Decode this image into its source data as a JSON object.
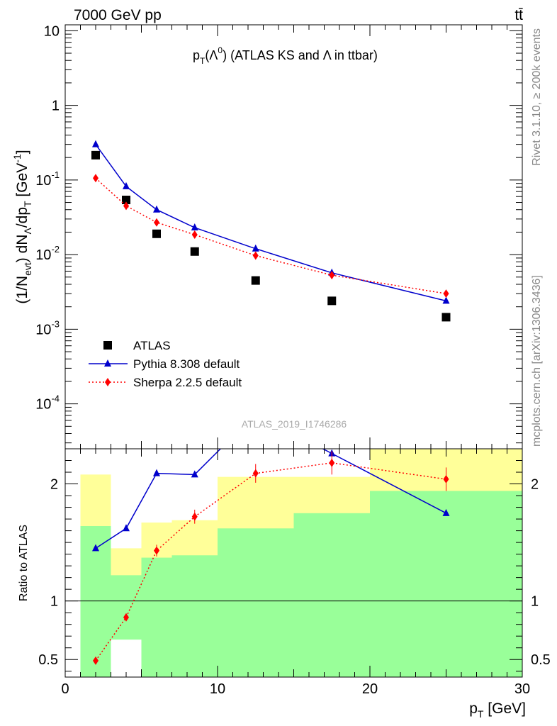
{
  "header": {
    "left": "7000 GeV pp",
    "right": "tt̄"
  },
  "side_labels": {
    "rivet": "Rivet 3.1.10, ≥ 200k events",
    "mcplots": "mcplots.cern.ch [arXiv:1306.3436]"
  },
  "chart_data": [
    {
      "type": "scatter",
      "title": "p_T(Λ^0) (ATLAS KS and Λ in ttbar)",
      "ylabel": "(1/N_evt) dN_Λ/dp_T [GeV^-1]",
      "xlabel": "p_T [GeV]",
      "yscale": "log",
      "xlim": [
        0,
        30
      ],
      "ylim": [
        2.5e-05,
        12
      ],
      "y_ticks": [
        "10^-4",
        "10^-3",
        "10^-2",
        "10^-1",
        "1",
        "10"
      ],
      "watermark": "ATLAS_2019_I1746286",
      "legend": {
        "position": "middle-left"
      },
      "series": [
        {
          "name": "ATLAS",
          "style": "markers",
          "marker": "square",
          "color": "#000000",
          "x": [
            2,
            4,
            6,
            8.5,
            12.5,
            17.5,
            25
          ],
          "y": [
            0.215,
            0.054,
            0.019,
            0.011,
            0.0045,
            0.0024,
            0.00145
          ]
        },
        {
          "name": "Pythia 8.308 default",
          "style": "solid",
          "marker": "triangle",
          "color": "#0000cc",
          "x": [
            2,
            4,
            6,
            8.5,
            12.5,
            17.5,
            25
          ],
          "y": [
            0.3,
            0.082,
            0.04,
            0.023,
            0.012,
            0.0057,
            0.0024
          ]
        },
        {
          "name": "Sherpa 2.2.5 default",
          "style": "dotted",
          "marker": "diamond",
          "color": "#ff0000",
          "x": [
            2,
            4,
            6,
            8.5,
            12.5,
            17.5,
            25
          ],
          "y": [
            0.106,
            0.045,
            0.027,
            0.0185,
            0.0097,
            0.0053,
            0.003
          ]
        }
      ]
    },
    {
      "type": "line",
      "ylabel": "Ratio to ATLAS",
      "xlabel": "p_T [GeV]",
      "xlim": [
        0,
        30
      ],
      "ylim": [
        0.35,
        2.3
      ],
      "x_ticks": [
        0,
        10,
        20,
        30
      ],
      "y_ticks": [
        0.5,
        1,
        2
      ],
      "reference_line": 1,
      "bins": [
        1,
        3,
        5,
        7,
        10,
        15,
        20,
        30
      ],
      "yellow_band": {
        "color": "#ffff99",
        "low": [
          0.41,
          0.62,
          0.75,
          0.74,
          0.44,
          0.3,
          0.3
        ],
        "high": [
          2.08,
          1.45,
          1.67,
          1.69,
          2.06,
          2.06,
          2.3
        ]
      },
      "green_band": {
        "color": "#99ff99",
        "low": [
          0.3,
          0.3,
          0.3,
          0.3,
          0.3,
          0.3,
          0.3
        ],
        "high": [
          1.64,
          1.22,
          1.37,
          1.39,
          1.62,
          1.75,
          1.94
        ]
      },
      "white_band": {
        "color": "#ffffff",
        "x": [
          3,
          5
        ],
        "low": 0.3,
        "high": 0.67
      },
      "series": [
        {
          "name": "Pythia 8.308 default",
          "style": "solid",
          "marker": "triangle",
          "color": "#0000cc",
          "x": [
            2,
            4,
            6,
            8.5,
            12.5,
            17.5,
            25
          ],
          "y": [
            1.45,
            1.62,
            2.09,
            2.08,
            2.6,
            2.26,
            1.75
          ]
        },
        {
          "name": "Sherpa 2.2.5 default",
          "style": "dotted",
          "marker": "diamond",
          "color": "#ff0000",
          "x": [
            2,
            4,
            6,
            8.5,
            12.5,
            17.5,
            25
          ],
          "y": [
            0.49,
            0.86,
            1.43,
            1.72,
            2.09,
            2.18,
            2.04
          ],
          "err": [
            0.02,
            0.03,
            0.05,
            0.06,
            0.08,
            0.1,
            0.1
          ]
        }
      ]
    }
  ]
}
